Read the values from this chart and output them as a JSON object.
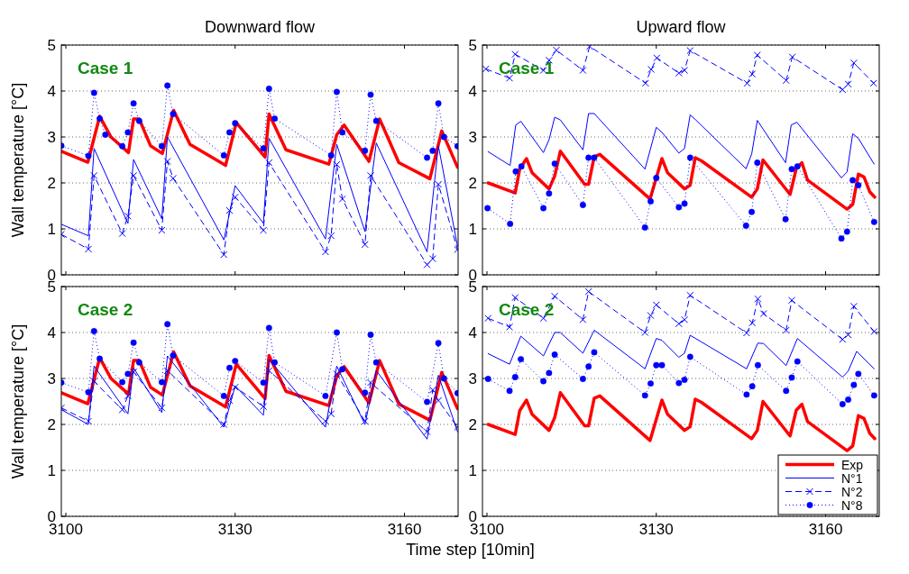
{
  "chart_data": [
    {
      "type": "line",
      "title": "Downward flow",
      "ylabel": "Wall temperature [°C]",
      "annotations": [
        "Case 1"
      ],
      "xlim": [
        3099.2,
        3169.5
      ],
      "xticks": [
        3100,
        3130,
        3160
      ],
      "ylim": [
        0,
        5
      ],
      "yticks": [
        0,
        1,
        2,
        3,
        4,
        5
      ],
      "grid": "y",
      "tick_labels": "y",
      "series": [
        {
          "color": "#ff0000",
          "line_style": "solid",
          "marker": "none",
          "x": [
            3099.2,
            3103.9,
            3106,
            3108,
            3111.1,
            3112,
            3113,
            3115,
            3117.1,
            3119.1,
            3122,
            3128.3,
            3130.2,
            3135.3,
            3136,
            3139,
            3146.6,
            3148,
            3149.3,
            3153.7,
            3155.6,
            3159,
            3164.5,
            3166.6,
            3169.4
          ],
          "values": [
            2.69,
            2.45,
            3.45,
            3.0,
            2.66,
            3.39,
            3.39,
            2.81,
            2.64,
            3.58,
            2.84,
            2.38,
            3.31,
            2.56,
            3.5,
            2.72,
            2.41,
            3.05,
            3.26,
            2.47,
            3.39,
            2.44,
            2.09,
            3.13,
            2.34
          ]
        },
        {
          "color": "#0000ff",
          "line_style": "solid",
          "marker": "none",
          "x": [
            3099.2,
            3104,
            3105,
            3111,
            3112,
            3117,
            3118,
            3128,
            3130,
            3135,
            3136,
            3146,
            3148,
            3153,
            3155,
            3164,
            3166,
            3169.4
          ],
          "values": [
            1.1,
            0.85,
            2.75,
            1.12,
            2.51,
            1.22,
            3.0,
            0.76,
            1.94,
            1.12,
            2.97,
            0.78,
            2.84,
            0.94,
            2.87,
            0.5,
            2.81,
            0.62
          ]
        },
        {
          "color": "#0000ff",
          "line_style": "dashed",
          "marker": "cross",
          "x": [
            3099.2,
            3104,
            3105,
            3110,
            3111,
            3112,
            3117,
            3118,
            3119,
            3128,
            3129,
            3130,
            3135,
            3136,
            3146,
            3147,
            3148,
            3149,
            3153,
            3154,
            3164,
            3165,
            3166,
            3169.4
          ],
          "values": [
            0.88,
            0.56,
            2.16,
            0.9,
            1.28,
            2.16,
            0.97,
            2.47,
            2.1,
            0.44,
            1.4,
            1.69,
            0.97,
            2.44,
            0.5,
            0.85,
            2.4,
            1.65,
            0.66,
            2.16,
            0.22,
            0.35,
            1.97,
            0.55
          ]
        },
        {
          "color": "#0000ff",
          "line_style": "dotted",
          "marker": "circle",
          "x": [
            3099.2,
            3104,
            3105,
            3106,
            3107,
            3110,
            3111,
            3112,
            3113,
            3117,
            3118,
            3119,
            3128,
            3129,
            3130,
            3135,
            3136,
            3137,
            3147,
            3148,
            3149,
            3153,
            3154,
            3155,
            3164,
            3165,
            3166,
            3167,
            3169.4
          ],
          "values": [
            2.81,
            2.59,
            3.96,
            3.4,
            3.05,
            2.8,
            3.1,
            3.73,
            3.35,
            2.8,
            4.12,
            3.5,
            2.6,
            3.1,
            3.3,
            2.75,
            4.05,
            3.4,
            2.6,
            3.98,
            3.1,
            2.7,
            3.92,
            3.35,
            2.55,
            2.7,
            3.73,
            3.0,
            2.8
          ]
        }
      ]
    },
    {
      "type": "line",
      "title": "Upward flow",
      "annotations": [
        "Case 1"
      ],
      "xlim": [
        3099.2,
        3169.5
      ],
      "xticks": [
        3100,
        3130,
        3160
      ],
      "ylim": [
        0,
        5
      ],
      "yticks": [
        0,
        1,
        2,
        3,
        4,
        5
      ],
      "grid": "y",
      "tick_labels": "y",
      "series": [
        {
          "color": "#ff0000",
          "line_style": "solid",
          "marker": "none",
          "x": [
            3100.2,
            3105,
            3105.8,
            3107,
            3108,
            3111,
            3112,
            3113,
            3117.3,
            3118,
            3119,
            3120,
            3128.9,
            3131,
            3132,
            3135,
            3136,
            3136.9,
            3138,
            3146.9,
            3147.9,
            3148.9,
            3153.7,
            3154.8,
            3155.8,
            3156.8,
            3163.8,
            3164.8,
            3165.8,
            3166.8,
            3167.8,
            3168.7
          ],
          "values": [
            2.0,
            1.78,
            2.3,
            2.53,
            2.22,
            1.87,
            2.15,
            2.69,
            1.97,
            1.97,
            2.57,
            2.62,
            1.65,
            2.53,
            2.22,
            1.87,
            1.95,
            2.55,
            2.48,
            1.69,
            1.87,
            2.5,
            1.75,
            2.31,
            2.44,
            2.06,
            1.43,
            1.53,
            2.19,
            2.13,
            1.81,
            1.69
          ]
        },
        {
          "color": "#0000ff",
          "line_style": "solid",
          "marker": "none",
          "x": [
            3100.2,
            3104.1,
            3105.1,
            3106,
            3110,
            3111,
            3112,
            3113,
            3117,
            3118,
            3119,
            3128,
            3130,
            3131,
            3134,
            3135,
            3136,
            3137,
            3145.9,
            3146.9,
            3147.9,
            3152.9,
            3153.9,
            3154.9,
            3162.8,
            3163.8,
            3164.8,
            3165.8,
            3168.6
          ],
          "values": [
            2.68,
            2.38,
            3.26,
            3.34,
            2.66,
            2.94,
            3.43,
            3.37,
            2.72,
            3.51,
            3.51,
            2.3,
            3.21,
            3.1,
            2.65,
            2.75,
            3.48,
            3.37,
            2.31,
            2.63,
            3.36,
            2.44,
            3.26,
            3.32,
            2.11,
            2.24,
            3.07,
            2.97,
            2.41
          ]
        },
        {
          "color": "#0000ff",
          "line_style": "dashed",
          "marker": "cross",
          "x": [
            3099.8,
            3104,
            3105,
            3110,
            3111,
            3112.3,
            3117,
            3118.2,
            3128.1,
            3129.1,
            3130.1,
            3134,
            3135,
            3136,
            3146.1,
            3147,
            3147.9,
            3153,
            3154.1,
            3163,
            3164,
            3165,
            3168.5
          ],
          "values": [
            4.48,
            4.28,
            4.8,
            4.45,
            4.67,
            4.89,
            4.45,
            4.97,
            4.17,
            4.47,
            4.72,
            4.39,
            4.45,
            4.88,
            4.17,
            4.37,
            4.78,
            4.23,
            4.74,
            4.03,
            4.15,
            4.61,
            4.17
          ]
        },
        {
          "color": "#0000ff",
          "line_style": "dotted",
          "marker": "circle",
          "x": [
            3100.1,
            3104.1,
            3105.1,
            3106.1,
            3110,
            3111,
            3112,
            3117,
            3118,
            3119,
            3128,
            3129,
            3130,
            3134,
            3135,
            3136,
            3145.9,
            3146.9,
            3147.9,
            3152.9,
            3154,
            3155,
            3162.8,
            3163.8,
            3164.8,
            3165.8,
            3168.6
          ],
          "values": [
            1.45,
            1.11,
            2.25,
            2.36,
            1.45,
            1.77,
            2.42,
            1.52,
            2.55,
            2.55,
            1.03,
            1.6,
            2.11,
            1.47,
            1.55,
            2.55,
            1.07,
            1.37,
            2.44,
            1.21,
            2.3,
            2.36,
            0.79,
            0.94,
            2.06,
            1.95,
            1.15
          ]
        }
      ]
    },
    {
      "type": "line",
      "ylabel": "Wall temperature [°C]",
      "xlabel": "Time step [10min]",
      "annotations": [
        "Case 2"
      ],
      "xlim": [
        3099.2,
        3169.5
      ],
      "xticks": [
        3100,
        3130,
        3160
      ],
      "ylim": [
        0,
        5
      ],
      "yticks": [
        0,
        1,
        2,
        3,
        4,
        5
      ],
      "grid": "y",
      "series": [
        {
          "color": "#ff0000",
          "line_style": "solid",
          "marker": "none",
          "x": [
            3099.2,
            3103.9,
            3106,
            3108,
            3111.1,
            3112,
            3113,
            3115,
            3117.1,
            3119.1,
            3122,
            3128.3,
            3130.2,
            3135.3,
            3136,
            3139,
            3146.6,
            3148,
            3149.3,
            3153.7,
            3155.6,
            3159,
            3164.5,
            3166.6,
            3169.4
          ],
          "values": [
            2.69,
            2.45,
            3.45,
            3.0,
            2.66,
            3.39,
            3.39,
            2.81,
            2.64,
            3.58,
            2.84,
            2.38,
            3.31,
            2.56,
            3.5,
            2.72,
            2.41,
            3.05,
            3.26,
            2.47,
            3.39,
            2.44,
            2.09,
            3.13,
            2.34
          ]
        },
        {
          "color": "#0000ff",
          "line_style": "solid",
          "marker": "none",
          "x": [
            3099.2,
            3104,
            3105,
            3111,
            3112,
            3117,
            3118,
            3128,
            3130,
            3135,
            3136,
            3146,
            3148,
            3153,
            3155,
            3164,
            3166,
            3169.4
          ],
          "values": [
            2.32,
            2.0,
            3.27,
            2.23,
            3.23,
            2.26,
            3.49,
            1.94,
            2.84,
            2.2,
            3.42,
            1.94,
            3.27,
            2.0,
            3.17,
            1.68,
            3.07,
            1.84
          ]
        },
        {
          "color": "#0000ff",
          "line_style": "dashed",
          "marker": "cross",
          "x": [
            3099.2,
            3104,
            3105,
            3110,
            3111,
            3112,
            3117,
            3118,
            3128,
            3129,
            3130,
            3135,
            3136,
            3146,
            3147,
            3148,
            3153,
            3154,
            3164,
            3165,
            3166,
            3169.4
          ],
          "values": [
            2.36,
            2.07,
            2.94,
            2.32,
            2.62,
            3.14,
            2.36,
            3.17,
            2.0,
            2.52,
            2.81,
            2.39,
            3.17,
            2.07,
            2.23,
            3.1,
            2.07,
            2.91,
            1.84,
            2.75,
            2.52,
            1.94
          ]
        },
        {
          "color": "#0000ff",
          "line_style": "dotted",
          "marker": "circle",
          "x": [
            3099.2,
            3104,
            3105,
            3106,
            3110,
            3111,
            3112,
            3113,
            3117,
            3118,
            3119,
            3128,
            3129,
            3130,
            3135,
            3136,
            3137,
            3146,
            3148,
            3149,
            3153,
            3154,
            3155,
            3164,
            3166,
            3167,
            3169.4
          ],
          "values": [
            2.91,
            2.7,
            4.03,
            3.43,
            2.92,
            3.1,
            3.78,
            3.35,
            2.92,
            4.18,
            3.5,
            2.62,
            3.23,
            3.38,
            2.91,
            4.1,
            3.35,
            2.62,
            4.0,
            3.2,
            2.69,
            3.95,
            3.35,
            2.49,
            3.77,
            3.0,
            2.68
          ]
        }
      ]
    },
    {
      "type": "line",
      "annotations": [
        "Case 2"
      ],
      "xlim": [
        3099.2,
        3169.5
      ],
      "xticks": [
        3100,
        3130,
        3160
      ],
      "ylim": [
        0,
        5
      ],
      "yticks": [
        0,
        1,
        2,
        3,
        4,
        5
      ],
      "grid": "y",
      "legend": "bottom right",
      "series": [
        {
          "name": "Exp",
          "color": "#ff0000",
          "line_style": "solid",
          "marker": "none",
          "x": [
            3100.2,
            3105,
            3105.8,
            3107,
            3108,
            3111,
            3112,
            3113,
            3117.3,
            3118,
            3119,
            3120,
            3128.9,
            3131,
            3132,
            3135,
            3136,
            3136.9,
            3138,
            3146.9,
            3147.9,
            3148.9,
            3153.7,
            3154.8,
            3155.8,
            3156.8,
            3163.8,
            3164.8,
            3165.8,
            3166.8,
            3167.8,
            3168.7
          ],
          "values": [
            2.0,
            1.78,
            2.3,
            2.53,
            2.22,
            1.87,
            2.15,
            2.69,
            1.97,
            1.97,
            2.57,
            2.62,
            1.65,
            2.53,
            2.22,
            1.87,
            1.95,
            2.55,
            2.48,
            1.69,
            1.87,
            2.5,
            1.75,
            2.31,
            2.44,
            2.06,
            1.43,
            1.53,
            2.19,
            2.13,
            1.81,
            1.69
          ]
        },
        {
          "name": "N°1",
          "color": "#0000ff",
          "line_style": "solid",
          "marker": "none",
          "x": [
            3100.2,
            3104,
            3106,
            3110,
            3112,
            3113,
            3117,
            3119,
            3128,
            3130,
            3131,
            3134,
            3135,
            3136,
            3146,
            3148,
            3149,
            3153,
            3155,
            3163,
            3164,
            3165.5,
            3168.6
          ],
          "values": [
            3.54,
            3.31,
            3.92,
            3.49,
            4.0,
            4.0,
            3.55,
            4.05,
            3.21,
            3.87,
            3.83,
            3.46,
            3.55,
            3.94,
            3.21,
            3.77,
            3.76,
            3.28,
            3.87,
            3.03,
            3.16,
            3.59,
            3.21
          ]
        },
        {
          "name": "N°2",
          "color": "#0000ff",
          "line_style": "dashed",
          "marker": "cross",
          "x": [
            3100.2,
            3104,
            3105,
            3110,
            3112,
            3117,
            3118,
            3128,
            3129,
            3130,
            3134,
            3135,
            3136,
            3146,
            3147,
            3148,
            3149,
            3153,
            3154,
            3163,
            3164,
            3165,
            3168.6
          ],
          "values": [
            4.31,
            4.12,
            4.76,
            4.31,
            4.79,
            4.28,
            4.89,
            4.0,
            4.37,
            4.6,
            4.19,
            4.28,
            4.81,
            3.99,
            4.21,
            4.73,
            4.41,
            4.05,
            4.7,
            3.85,
            3.95,
            4.57,
            4.02
          ]
        },
        {
          "name": "N°8",
          "color": "#0000ff",
          "line_style": "dotted",
          "marker": "circle",
          "x": [
            3100.2,
            3104,
            3105,
            3106,
            3110,
            3111,
            3112,
            3117,
            3118,
            3119,
            3128,
            3129,
            3130,
            3131,
            3134,
            3135,
            3136,
            3146,
            3147,
            3148,
            3153,
            3154,
            3155,
            3163,
            3164,
            3165,
            3165.8,
            3168.6
          ],
          "values": [
            2.99,
            2.73,
            3.03,
            3.42,
            2.94,
            3.12,
            3.52,
            2.99,
            3.26,
            3.57,
            2.63,
            2.89,
            3.29,
            3.29,
            2.9,
            2.97,
            3.47,
            2.65,
            2.83,
            3.29,
            2.73,
            3.02,
            3.37,
            2.44,
            2.54,
            2.86,
            3.1,
            2.63
          ]
        }
      ]
    }
  ]
}
